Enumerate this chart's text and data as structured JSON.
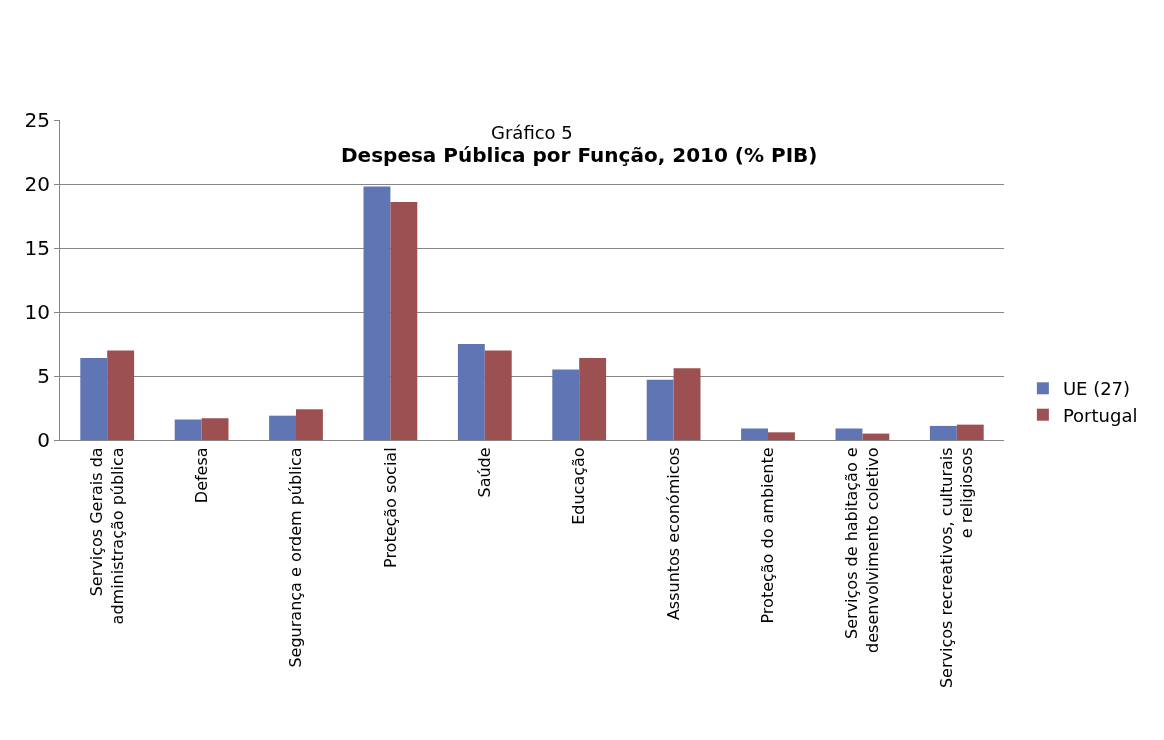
{
  "chart_data": {
    "type": "bar",
    "subtitle": "Gráfico 5",
    "title": "Despesa Pública por Função, 2010 (% PIB)",
    "categories": [
      "Serviços Gerais da\nadministração pública",
      "Defesa",
      "Segurança e ordem pública",
      "Proteção social",
      "Saúde",
      "Educação",
      "Assuntos económicos",
      "Proteção do ambiente",
      "Serviços de habitação e\ndesenvolvimento coletivo",
      "Serviços recreativos, culturais\ne religiosos"
    ],
    "series": [
      {
        "name": "UE (27)",
        "color": "#6076b4",
        "values": [
          6.4,
          1.6,
          1.9,
          19.8,
          7.5,
          5.5,
          4.7,
          0.9,
          0.9,
          1.1
        ]
      },
      {
        "name": "Portugal",
        "color": "#9c5051",
        "values": [
          7.0,
          1.7,
          2.4,
          18.6,
          7.0,
          6.4,
          5.6,
          0.6,
          0.5,
          1.2
        ]
      }
    ],
    "ylim": [
      0,
      25
    ],
    "yticks": [
      0,
      5,
      10,
      15,
      20,
      25
    ],
    "grid": "y",
    "legend": "right"
  }
}
